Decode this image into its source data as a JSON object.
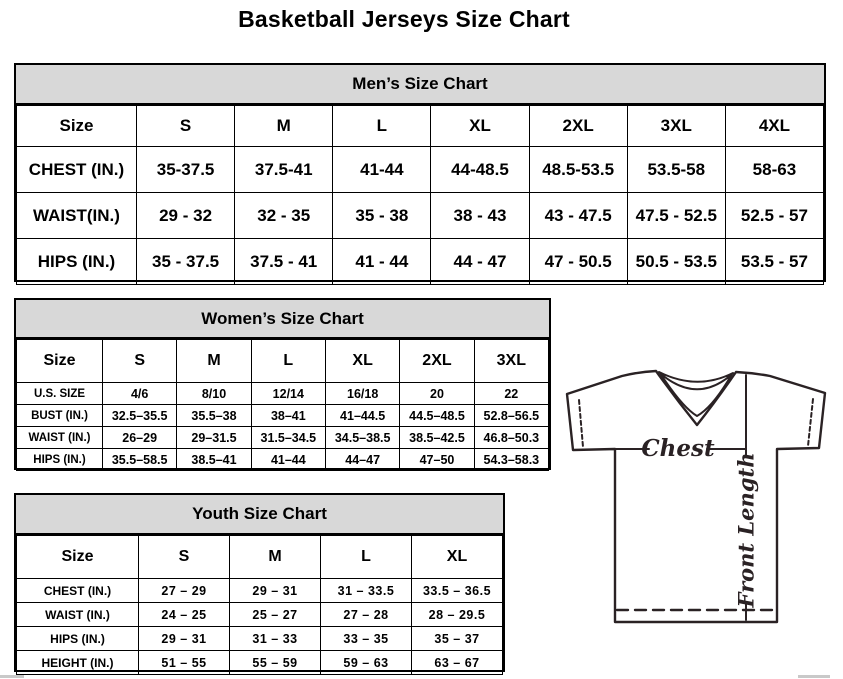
{
  "page": {
    "title": "Basketball Jerseys Size Chart"
  },
  "colors": {
    "table_header_bg": "#d8d8d8",
    "table_border": "#000000",
    "diagram_stroke": "#2a2224"
  },
  "tables": {
    "men": {
      "title": "Men’s Size Chart",
      "columns": [
        "Size",
        "S",
        "M",
        "L",
        "XL",
        "2XL",
        "3XL",
        "4XL"
      ],
      "rows": [
        {
          "label": "CHEST (IN.)",
          "values": [
            "35-37.5",
            "37.5-41",
            "41-44",
            "44-48.5",
            "48.5-53.5",
            "53.5-58",
            "58-63"
          ]
        },
        {
          "label": "WAIST(IN.)",
          "values": [
            "29 - 32",
            "32 - 35",
            "35 - 38",
            "38 - 43",
            "43 - 47.5",
            "47.5 - 52.5",
            "52.5 - 57"
          ]
        },
        {
          "label": "HIPS (IN.)",
          "values": [
            "35 - 37.5",
            "37.5 - 41",
            "41 - 44",
            "44 - 47",
            "47 - 50.5",
            "50.5 - 53.5",
            "53.5 - 57"
          ]
        }
      ]
    },
    "women": {
      "title": "Women’s Size Chart",
      "columns": [
        "Size",
        "S",
        "M",
        "L",
        "XL",
        "2XL",
        "3XL"
      ],
      "rows": [
        {
          "label": "U.S. SIZE",
          "values": [
            "4/6",
            "8/10",
            "12/14",
            "16/18",
            "20",
            "22"
          ]
        },
        {
          "label": "BUST (IN.)",
          "values": [
            "32.5–35.5",
            "35.5–38",
            "38–41",
            "41–44.5",
            "44.5–48.5",
            "52.8–56.5"
          ]
        },
        {
          "label": "WAIST (IN.)",
          "values": [
            "26–29",
            "29–31.5",
            "31.5–34.5",
            "34.5–38.5",
            "38.5–42.5",
            "46.8–50.3"
          ]
        },
        {
          "label": "HIPS (IN.)",
          "values": [
            "35.5–58.5",
            "38.5–41",
            "41–44",
            "44–47",
            "47–50",
            "54.3–58.3"
          ]
        }
      ]
    },
    "youth": {
      "title": "Youth Size Chart",
      "columns": [
        "Size",
        "S",
        "M",
        "L",
        "XL"
      ],
      "rows": [
        {
          "label": "CHEST (IN.)",
          "values": [
            "27 – 29",
            "29 – 31",
            "31 – 33.5",
            "33.5 – 36.5"
          ]
        },
        {
          "label": "WAIST (IN.)",
          "values": [
            "24 – 25",
            "25 – 27",
            "27 – 28",
            "28 – 29.5"
          ]
        },
        {
          "label": "HIPS (IN.)",
          "values": [
            "29 – 31",
            "31 – 33",
            "33 – 35",
            "35 – 37"
          ]
        },
        {
          "label": "HEIGHT (IN.)",
          "values": [
            "51 – 55",
            "55 – 59",
            "59 – 63",
            "63 – 67"
          ]
        }
      ]
    }
  },
  "diagram": {
    "chest_label": "Chest",
    "front_length_label": "Front Length"
  }
}
